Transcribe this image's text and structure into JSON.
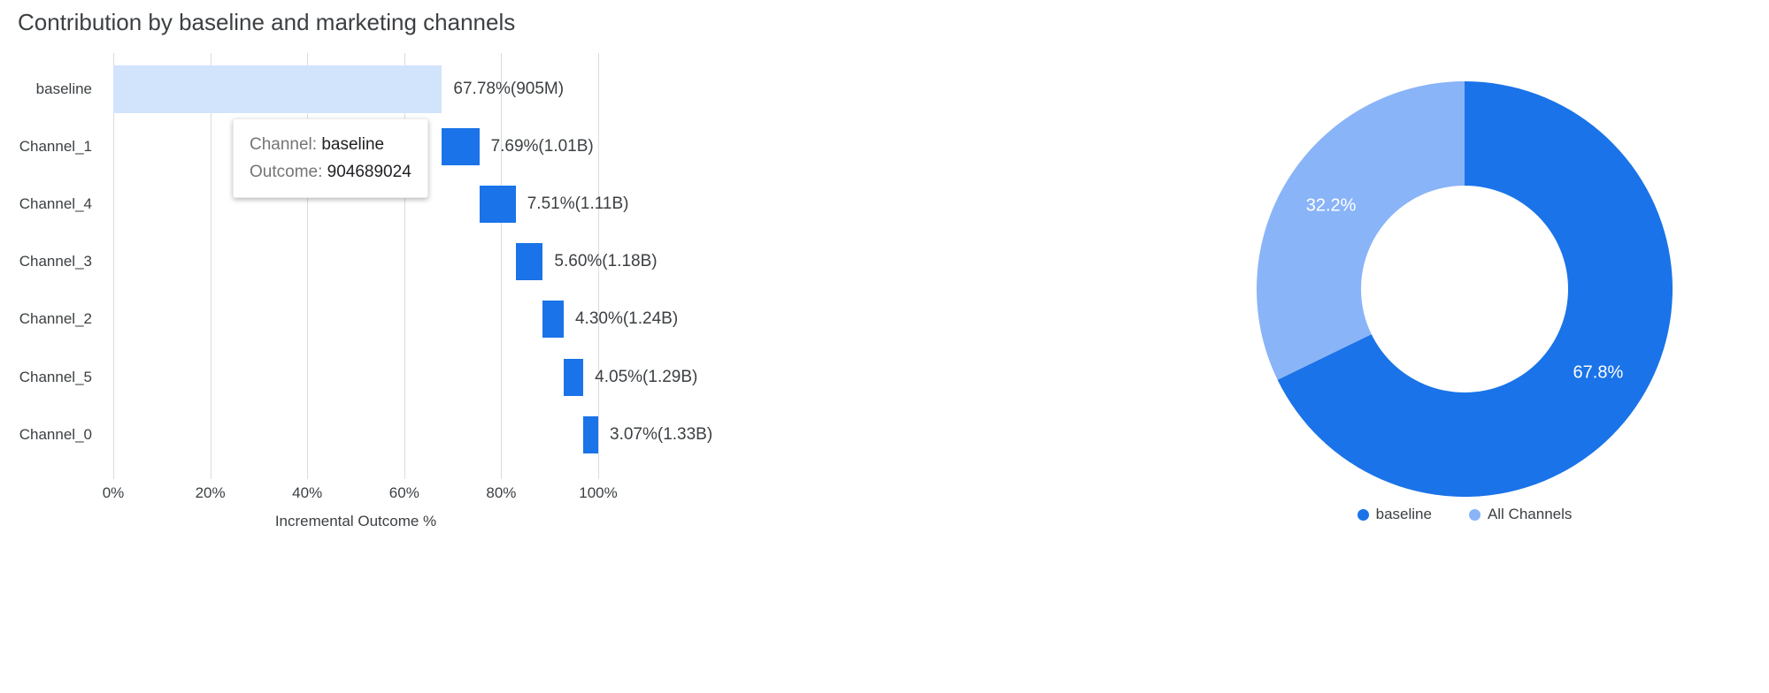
{
  "page": {
    "title": "Contribution by baseline and marketing channels"
  },
  "tooltip": {
    "channel_label": "Channel:",
    "channel_value": "baseline",
    "outcome_label": "Outcome:",
    "outcome_value": "904689024"
  },
  "colors": {
    "baseline_bar": "#d2e3fc",
    "channel_bar": "#1a73e8",
    "donut_baseline": "#1a73e8",
    "donut_all_channels": "#8ab4f8",
    "gridline": "#dadce0",
    "axis_text": "#3c4043"
  },
  "chart_data": [
    {
      "type": "bar",
      "subtype": "waterfall",
      "title": "Contribution by baseline and marketing channels",
      "xlabel": "Incremental Outcome %",
      "xlim": [
        0,
        100
      ],
      "grid": true,
      "x_ticks": [
        {
          "value": 0,
          "label": "0%"
        },
        {
          "value": 20,
          "label": "20%"
        },
        {
          "value": 40,
          "label": "40%"
        },
        {
          "value": 60,
          "label": "60%"
        },
        {
          "value": 80,
          "label": "80%"
        },
        {
          "value": 100,
          "label": "100%"
        }
      ],
      "categories": [
        "baseline",
        "Channel_1",
        "Channel_4",
        "Channel_3",
        "Channel_2",
        "Channel_5",
        "Channel_0"
      ],
      "segments": [
        {
          "category": "baseline",
          "value_pct": 67.78,
          "outcome": "905M",
          "start": 0,
          "end": 67.78,
          "label": "67.78%(905M)"
        },
        {
          "category": "Channel_1",
          "value_pct": 7.69,
          "outcome": "1.01B",
          "start": 67.78,
          "end": 75.47,
          "label": "7.69%(1.01B)"
        },
        {
          "category": "Channel_4",
          "value_pct": 7.51,
          "outcome": "1.11B",
          "start": 75.47,
          "end": 82.98,
          "label": "7.51%(1.11B)"
        },
        {
          "category": "Channel_3",
          "value_pct": 5.6,
          "outcome": "1.18B",
          "start": 82.98,
          "end": 88.58,
          "label": "5.60%(1.18B)"
        },
        {
          "category": "Channel_2",
          "value_pct": 4.3,
          "outcome": "1.24B",
          "start": 88.58,
          "end": 92.88,
          "label": "4.30%(1.24B)"
        },
        {
          "category": "Channel_5",
          "value_pct": 4.05,
          "outcome": "1.29B",
          "start": 92.88,
          "end": 96.93,
          "label": "4.05%(1.29B)"
        },
        {
          "category": "Channel_0",
          "value_pct": 3.07,
          "outcome": "1.33B",
          "start": 96.93,
          "end": 100.0,
          "label": "3.07%(1.33B)"
        }
      ]
    },
    {
      "type": "pie",
      "subtype": "donut",
      "legend_position": "bottom",
      "slices": [
        {
          "label": "baseline",
          "value": 67.8,
          "display": "67.8%",
          "color": "#1a73e8"
        },
        {
          "label": "All Channels",
          "value": 32.2,
          "display": "32.2%",
          "color": "#8ab4f8"
        }
      ]
    }
  ]
}
